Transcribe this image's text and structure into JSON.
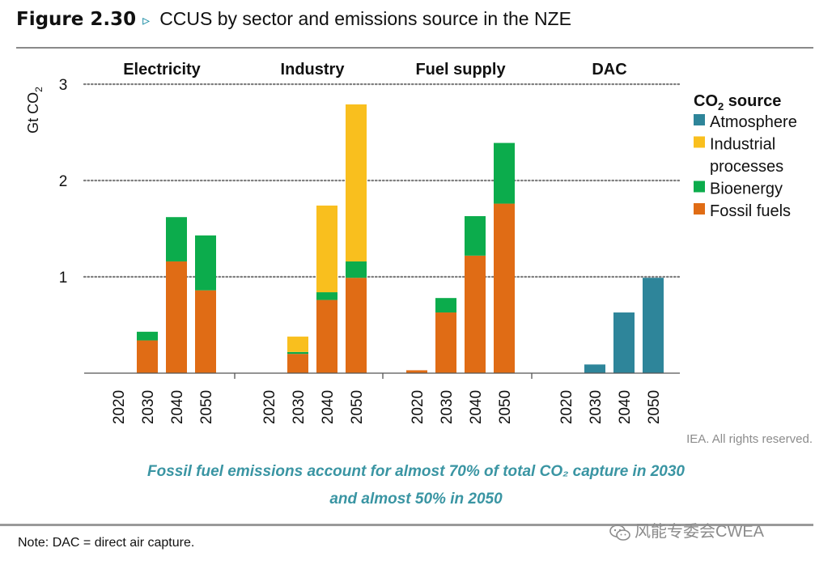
{
  "figure": {
    "number": "Figure 2.30",
    "marker": "▹",
    "title": "CCUS by sector and emissions source in the NZE"
  },
  "chart_data": {
    "type": "bar",
    "stacked": true,
    "ylabel": "Gt CO2",
    "ylim": [
      0,
      3
    ],
    "yticks": [
      1,
      2,
      3
    ],
    "grid": "dotted horizontal at 1, 2, 3",
    "legend_title": "CO2 source",
    "legend_position": "right",
    "legend": [
      {
        "key": "atmosphere",
        "label_lines": [
          "Atmosphere"
        ],
        "color": "#2e859a"
      },
      {
        "key": "industrial",
        "label_lines": [
          "Industrial",
          "processes"
        ],
        "color": "#f9bf1e"
      },
      {
        "key": "bioenergy",
        "label_lines": [
          "Bioenergy"
        ],
        "color": "#0cac4c"
      },
      {
        "key": "fossil",
        "label_lines": [
          "Fossil fuels"
        ],
        "color": "#e06c15"
      }
    ],
    "stack_order": [
      "fossil",
      "bioenergy",
      "industrial",
      "atmosphere"
    ],
    "groups": [
      {
        "name": "Electricity",
        "bars": [
          {
            "year": "2020",
            "fossil": 0,
            "bioenergy": 0,
            "industrial": 0,
            "atmosphere": 0
          },
          {
            "year": "2030",
            "fossil": 0.34,
            "bioenergy": 0.09,
            "industrial": 0,
            "atmosphere": 0
          },
          {
            "year": "2040",
            "fossil": 1.16,
            "bioenergy": 0.46,
            "industrial": 0,
            "atmosphere": 0
          },
          {
            "year": "2050",
            "fossil": 0.86,
            "bioenergy": 0.57,
            "industrial": 0,
            "atmosphere": 0
          }
        ]
      },
      {
        "name": "Industry",
        "bars": [
          {
            "year": "2020",
            "fossil": 0,
            "bioenergy": 0,
            "industrial": 0,
            "atmosphere": 0
          },
          {
            "year": "2030",
            "fossil": 0.2,
            "bioenergy": 0.02,
            "industrial": 0.16,
            "atmosphere": 0
          },
          {
            "year": "2040",
            "fossil": 0.76,
            "bioenergy": 0.08,
            "industrial": 0.9,
            "atmosphere": 0
          },
          {
            "year": "2050",
            "fossil": 0.99,
            "bioenergy": 0.17,
            "industrial": 1.63,
            "atmosphere": 0
          }
        ]
      },
      {
        "name": "Fuel supply",
        "bars": [
          {
            "year": "2020",
            "fossil": 0.03,
            "bioenergy": 0,
            "industrial": 0,
            "atmosphere": 0
          },
          {
            "year": "2030",
            "fossil": 0.63,
            "bioenergy": 0.15,
            "industrial": 0,
            "atmosphere": 0
          },
          {
            "year": "2040",
            "fossil": 1.22,
            "bioenergy": 0.41,
            "industrial": 0,
            "atmosphere": 0
          },
          {
            "year": "2050",
            "fossil": 1.76,
            "bioenergy": 0.63,
            "industrial": 0,
            "atmosphere": 0
          }
        ]
      },
      {
        "name": "DAC",
        "bars": [
          {
            "year": "2020",
            "fossil": 0,
            "bioenergy": 0,
            "industrial": 0,
            "atmosphere": 0
          },
          {
            "year": "2030",
            "fossil": 0,
            "bioenergy": 0,
            "industrial": 0,
            "atmosphere": 0.09
          },
          {
            "year": "2040",
            "fossil": 0,
            "bioenergy": 0,
            "industrial": 0,
            "atmosphere": 0.63
          },
          {
            "year": "2050",
            "fossil": 0,
            "bioenergy": 0,
            "industrial": 0,
            "atmosphere": 0.99
          }
        ]
      }
    ]
  },
  "credit": "IEA. All rights reserved.",
  "caption": {
    "line1": "Fossil fuel emissions account for almost 70% of total CO₂ capture in 2030",
    "line2": "and almost 50% in 2050"
  },
  "note": "Note: DAC = direct air capture.",
  "watermark": "风能专委会CWEA"
}
